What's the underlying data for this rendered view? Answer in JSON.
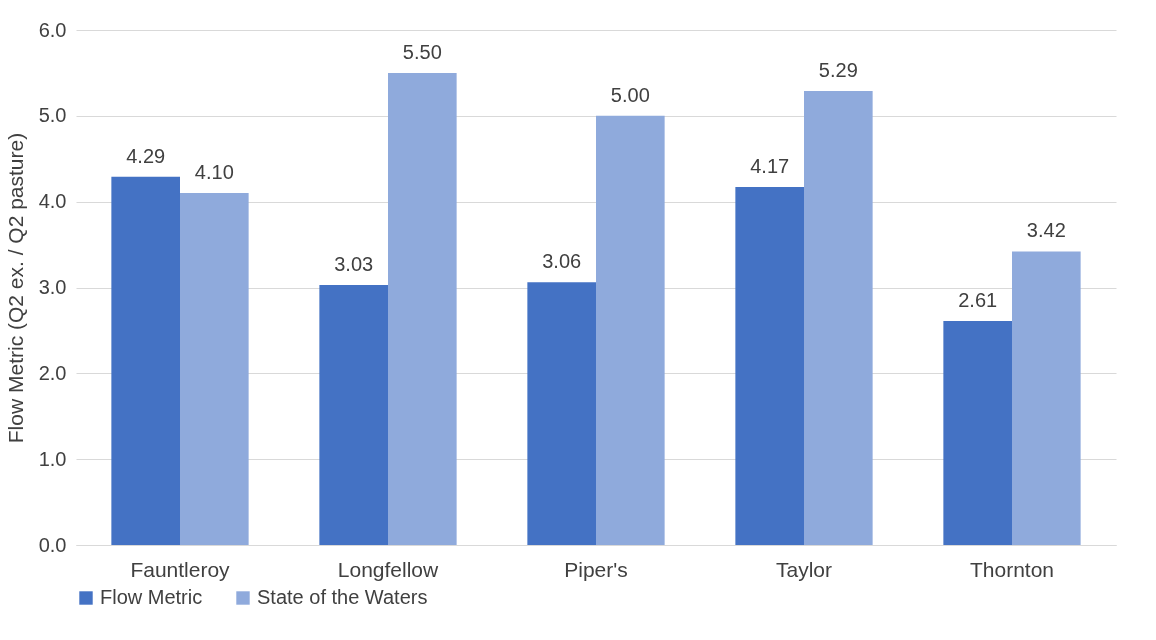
{
  "chart_data": {
    "type": "bar",
    "ylabel": "Flow Metric (Q2 ex. / Q2 pasture)",
    "categories": [
      "Fauntleroy",
      "Longfellow",
      "Piper's",
      "Taylor",
      "Thornton"
    ],
    "series": [
      {
        "name": "Flow Metric",
        "color": "#4472c4",
        "values": [
          4.29,
          3.03,
          3.06,
          4.17,
          2.61
        ],
        "value_labels": [
          "4.29",
          "3.03",
          "3.06",
          "4.17",
          "2.61"
        ]
      },
      {
        "name": "State of the Waters",
        "color": "#8faadc",
        "values": [
          4.1,
          5.5,
          5.0,
          5.29,
          3.42
        ],
        "value_labels": [
          "4.10",
          "5.50",
          "5.00",
          "5.29",
          "3.42"
        ]
      }
    ],
    "ylim": [
      0,
      6
    ],
    "yticks": [
      {
        "value": 0,
        "label": "0.0"
      },
      {
        "value": 1,
        "label": "1.0"
      },
      {
        "value": 2,
        "label": "2.0"
      },
      {
        "value": 3,
        "label": "3.0"
      },
      {
        "value": 4,
        "label": "4.0"
      },
      {
        "value": 5,
        "label": "5.0"
      },
      {
        "value": 6,
        "label": "6.0"
      }
    ],
    "grid": "y",
    "legend": "bottom"
  }
}
